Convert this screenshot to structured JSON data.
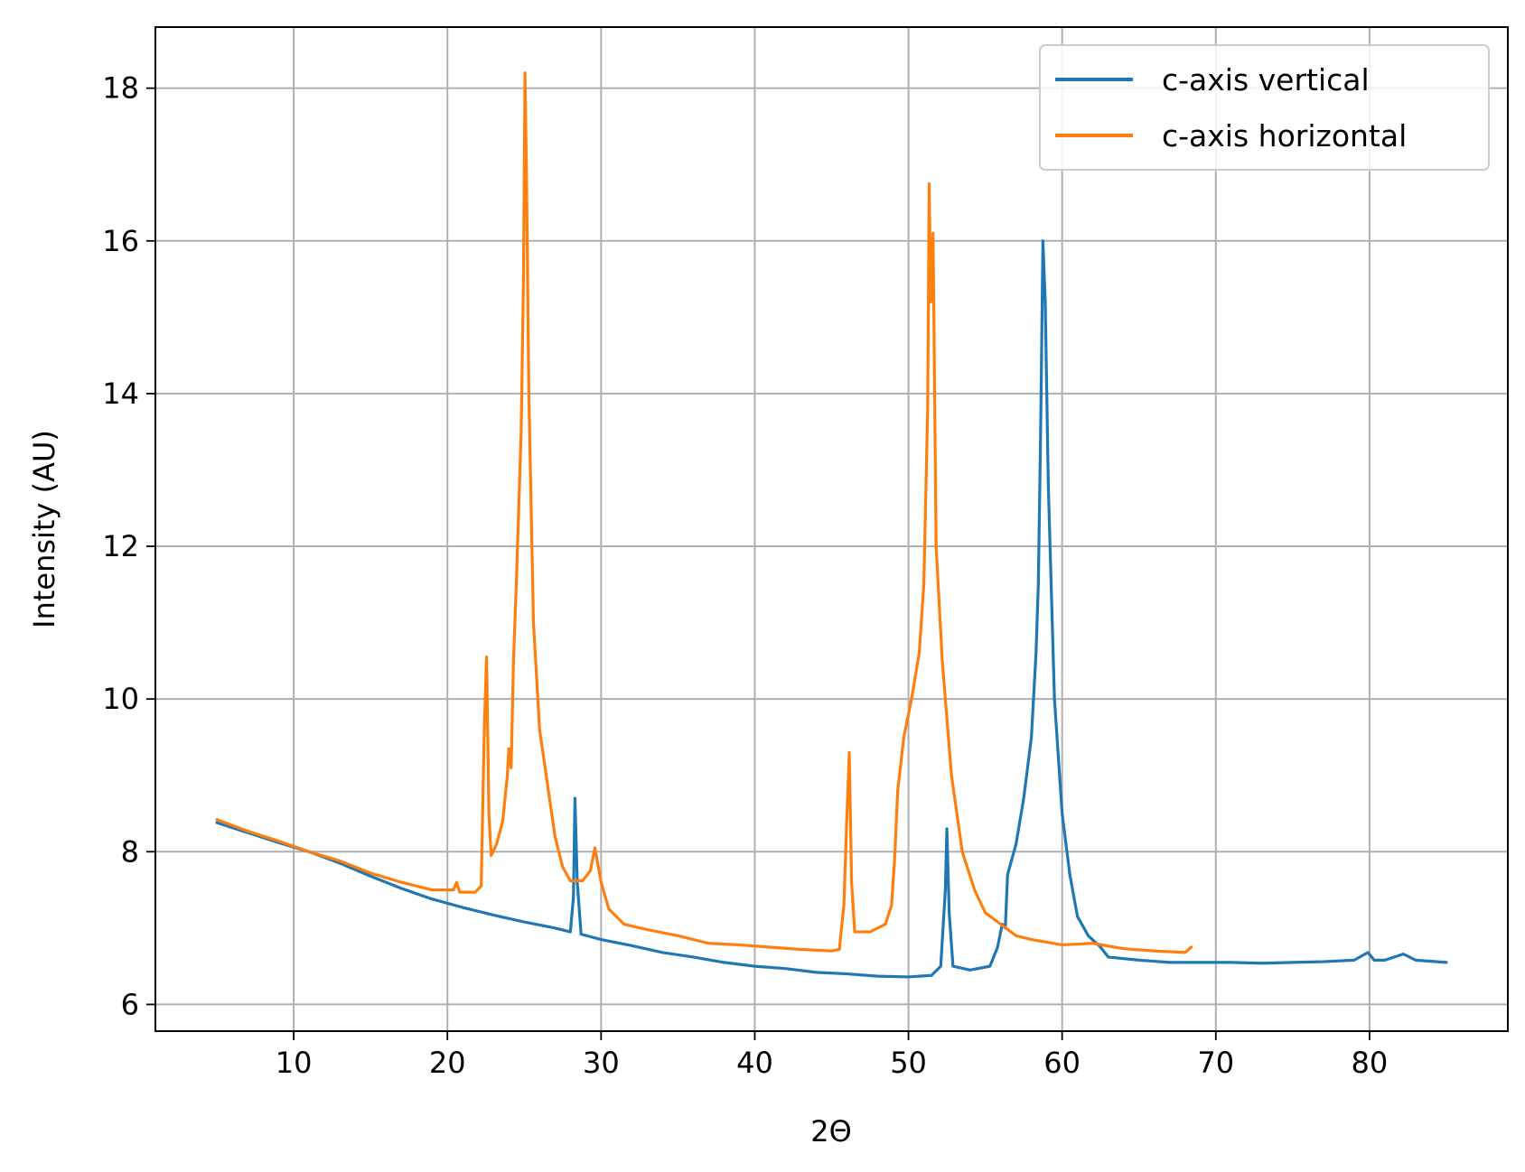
{
  "chart_data": {
    "type": "line",
    "title": "",
    "xlabel": "2Θ",
    "ylabel": "Intensity (AU)",
    "xlim": [
      1,
      89
    ],
    "ylim": [
      5.65,
      18.8
    ],
    "xticks": [
      10,
      20,
      30,
      40,
      50,
      60,
      70,
      80
    ],
    "yticks": [
      6,
      8,
      10,
      12,
      14,
      16,
      18
    ],
    "grid": true,
    "legend_position": "top-right",
    "series": [
      {
        "name": "c-axis vertical",
        "color": "#1f77b4",
        "points": [
          [
            5,
            8.38
          ],
          [
            7,
            8.25
          ],
          [
            9,
            8.12
          ],
          [
            11,
            8.0
          ],
          [
            13,
            7.85
          ],
          [
            15,
            7.68
          ],
          [
            17,
            7.52
          ],
          [
            19,
            7.38
          ],
          [
            21,
            7.27
          ],
          [
            23,
            7.17
          ],
          [
            25,
            7.08
          ],
          [
            27,
            7.0
          ],
          [
            28.0,
            6.95
          ],
          [
            28.2,
            7.4
          ],
          [
            28.3,
            8.7
          ],
          [
            28.45,
            7.6
          ],
          [
            28.7,
            6.92
          ],
          [
            30,
            6.85
          ],
          [
            32,
            6.77
          ],
          [
            34,
            6.68
          ],
          [
            36,
            6.62
          ],
          [
            38,
            6.55
          ],
          [
            40,
            6.5
          ],
          [
            42,
            6.47
          ],
          [
            44,
            6.42
          ],
          [
            46,
            6.4
          ],
          [
            48,
            6.37
          ],
          [
            50,
            6.36
          ],
          [
            51.5,
            6.38
          ],
          [
            52.1,
            6.5
          ],
          [
            52.4,
            7.5
          ],
          [
            52.5,
            8.3
          ],
          [
            52.65,
            7.2
          ],
          [
            52.9,
            6.5
          ],
          [
            54,
            6.45
          ],
          [
            55.3,
            6.5
          ],
          [
            55.8,
            6.75
          ],
          [
            56.1,
            7.05
          ],
          [
            56.3,
            7.0
          ],
          [
            56.45,
            7.7
          ],
          [
            57.0,
            8.1
          ],
          [
            57.5,
            8.7
          ],
          [
            58.0,
            9.5
          ],
          [
            58.3,
            10.6
          ],
          [
            58.45,
            11.5
          ],
          [
            58.6,
            13.5
          ],
          [
            58.75,
            16.0
          ],
          [
            58.9,
            15.2
          ],
          [
            59.1,
            12.8
          ],
          [
            59.5,
            10.0
          ],
          [
            60.0,
            8.5
          ],
          [
            60.5,
            7.7
          ],
          [
            61.0,
            7.15
          ],
          [
            61.7,
            6.9
          ],
          [
            62.5,
            6.75
          ],
          [
            63.0,
            6.62
          ],
          [
            65,
            6.58
          ],
          [
            67,
            6.55
          ],
          [
            69,
            6.55
          ],
          [
            71,
            6.55
          ],
          [
            73,
            6.54
          ],
          [
            75,
            6.55
          ],
          [
            77,
            6.56
          ],
          [
            79,
            6.58
          ],
          [
            79.9,
            6.68
          ],
          [
            80.3,
            6.58
          ],
          [
            81,
            6.58
          ],
          [
            82.2,
            6.66
          ],
          [
            83,
            6.58
          ],
          [
            85,
            6.55
          ]
        ]
      },
      {
        "name": "c-axis horizontal",
        "color": "#ff7f0e",
        "points": [
          [
            5,
            8.42
          ],
          [
            7,
            8.27
          ],
          [
            9,
            8.14
          ],
          [
            11,
            8.0
          ],
          [
            13,
            7.88
          ],
          [
            15,
            7.72
          ],
          [
            17,
            7.6
          ],
          [
            19,
            7.5
          ],
          [
            20.4,
            7.5
          ],
          [
            20.6,
            7.6
          ],
          [
            20.8,
            7.47
          ],
          [
            21.8,
            7.47
          ],
          [
            22.2,
            7.55
          ],
          [
            22.4,
            9.6
          ],
          [
            22.55,
            10.55
          ],
          [
            22.7,
            8.5
          ],
          [
            22.85,
            7.95
          ],
          [
            23.2,
            8.1
          ],
          [
            23.6,
            8.4
          ],
          [
            23.9,
            9.0
          ],
          [
            24.0,
            9.35
          ],
          [
            24.15,
            9.1
          ],
          [
            24.3,
            10.5
          ],
          [
            24.5,
            11.6
          ],
          [
            24.8,
            13.5
          ],
          [
            24.95,
            15.5
          ],
          [
            25.05,
            18.2
          ],
          [
            25.15,
            16.8
          ],
          [
            25.3,
            14.0
          ],
          [
            25.6,
            11.0
          ],
          [
            26.0,
            9.6
          ],
          [
            26.5,
            8.9
          ],
          [
            27.0,
            8.2
          ],
          [
            27.5,
            7.8
          ],
          [
            28.0,
            7.62
          ],
          [
            28.8,
            7.62
          ],
          [
            29.3,
            7.75
          ],
          [
            29.6,
            8.05
          ],
          [
            30.0,
            7.6
          ],
          [
            30.5,
            7.25
          ],
          [
            31.5,
            7.05
          ],
          [
            33,
            6.98
          ],
          [
            35,
            6.9
          ],
          [
            37,
            6.8
          ],
          [
            39,
            6.78
          ],
          [
            41,
            6.75
          ],
          [
            43,
            6.72
          ],
          [
            45,
            6.7
          ],
          [
            45.5,
            6.72
          ],
          [
            45.8,
            7.3
          ],
          [
            46.0,
            8.5
          ],
          [
            46.15,
            9.3
          ],
          [
            46.3,
            7.6
          ],
          [
            46.5,
            6.95
          ],
          [
            47.5,
            6.95
          ],
          [
            48.5,
            7.05
          ],
          [
            48.9,
            7.3
          ],
          [
            49.1,
            7.9
          ],
          [
            49.3,
            8.8
          ],
          [
            49.7,
            9.5
          ],
          [
            50.2,
            10.0
          ],
          [
            50.7,
            10.6
          ],
          [
            51.0,
            11.5
          ],
          [
            51.25,
            13.8
          ],
          [
            51.35,
            16.75
          ],
          [
            51.45,
            15.2
          ],
          [
            51.6,
            16.1
          ],
          [
            51.8,
            12.0
          ],
          [
            52.2,
            10.5
          ],
          [
            52.8,
            9.0
          ],
          [
            53.5,
            8.0
          ],
          [
            54.3,
            7.5
          ],
          [
            55,
            7.2
          ],
          [
            56,
            7.05
          ],
          [
            57,
            6.9
          ],
          [
            58,
            6.85
          ],
          [
            60,
            6.78
          ],
          [
            62,
            6.8
          ],
          [
            64,
            6.73
          ],
          [
            66,
            6.7
          ],
          [
            68,
            6.68
          ],
          [
            68.4,
            6.75
          ]
        ]
      }
    ]
  }
}
